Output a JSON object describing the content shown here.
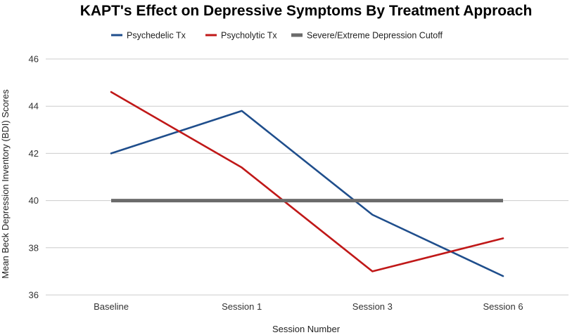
{
  "chart_data": {
    "type": "line",
    "title": "KAPT's Effect on Depressive Symptoms By Treatment Approach",
    "xlabel": "Session Number",
    "ylabel": "Mean Beck Depression Inventory (BDI) Scores",
    "categories": [
      "Baseline",
      "Session 1",
      "Session 3",
      "Session 6"
    ],
    "ylim": [
      36,
      46
    ],
    "yticks": [
      36,
      38,
      40,
      42,
      44,
      46
    ],
    "grid": true,
    "legend_position": "top",
    "series": [
      {
        "name": "Psychedelic Tx",
        "color": "#1f4e8c",
        "values": [
          42.0,
          43.8,
          39.4,
          36.8
        ]
      },
      {
        "name": "Psycholytic Tx",
        "color": "#c01818",
        "values": [
          44.6,
          41.4,
          37.0,
          38.4
        ]
      },
      {
        "name": "Severe/Extreme Depression Cutoff",
        "color": "#6b6b6b",
        "values": [
          40,
          40,
          40,
          40
        ]
      }
    ]
  }
}
